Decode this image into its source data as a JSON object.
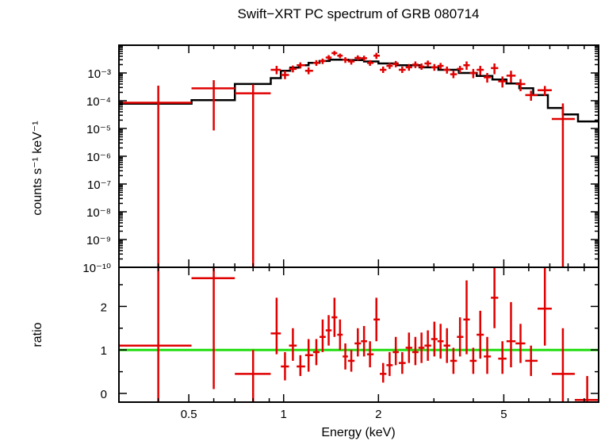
{
  "chart_data": [
    {
      "type": "scatter",
      "title": "Swift−XRT PC spectrum of GRB 080714",
      "xlabel": "",
      "ylabel": "counts s⁻¹ keV⁻¹",
      "xscale": "log",
      "yscale": "log",
      "xlim": [
        0.3,
        10
      ],
      "ylim": [
        1e-10,
        0.01
      ],
      "y_tick_labels": [
        "10⁻³",
        "10⁻⁴",
        "10⁻⁵",
        "10⁻⁶",
        "10⁻⁷",
        "10⁻⁸",
        "10⁻⁹",
        "10⁻¹⁰"
      ],
      "y_tick_values": [
        0.001,
        0.0001,
        1e-05,
        1e-06,
        1e-07,
        1e-08,
        1e-09,
        1e-10
      ],
      "series": [
        {
          "style": "crosses",
          "color": "#e00000",
          "points": [
            [
              0.3,
              0.51,
              0.4,
              8.5e-05,
              1e-10,
              0.00035
            ],
            [
              0.51,
              0.7,
              0.6,
              0.00028,
              8.5e-06,
              0.00055
            ],
            [
              0.7,
              0.91,
              0.8,
              0.000185,
              1e-10,
              0.00039
            ],
            [
              0.91,
              0.98,
              0.95,
              0.0013,
              0.0009,
              0.0018
            ],
            [
              0.98,
              1.04,
              1.01,
              0.00085,
              0.0006,
              0.0012
            ],
            [
              1.04,
              1.1,
              1.07,
              0.0014,
              0.00105,
              0.00185
            ],
            [
              1.1,
              1.17,
              1.13,
              0.0019,
              0.00145,
              0.0024
            ],
            [
              1.17,
              1.24,
              1.2,
              0.0012,
              0.0009,
              0.0016
            ],
            [
              1.24,
              1.3,
              1.27,
              0.0023,
              0.0018,
              0.0029
            ],
            [
              1.3,
              1.36,
              1.33,
              0.0027,
              0.0021,
              0.0033
            ],
            [
              1.36,
              1.42,
              1.39,
              0.0036,
              0.0029,
              0.0044
            ],
            [
              1.42,
              1.48,
              1.45,
              0.0052,
              0.0043,
              0.0062
            ],
            [
              1.48,
              1.54,
              1.51,
              0.0042,
              0.0034,
              0.005
            ],
            [
              1.54,
              1.6,
              1.57,
              0.003,
              0.0023,
              0.0037
            ],
            [
              1.6,
              1.68,
              1.64,
              0.0026,
              0.002,
              0.0032
            ],
            [
              1.68,
              1.76,
              1.72,
              0.0035,
              0.0028,
              0.0043
            ],
            [
              1.76,
              1.84,
              1.8,
              0.0034,
              0.0027,
              0.0042
            ],
            [
              1.84,
              1.93,
              1.88,
              0.0023,
              0.0018,
              0.0029
            ],
            [
              1.93,
              2.02,
              1.97,
              0.0042,
              0.0032,
              0.0053
            ],
            [
              2.02,
              2.12,
              2.07,
              0.0013,
              0.001,
              0.0017
            ],
            [
              2.12,
              2.22,
              2.17,
              0.0018,
              0.0014,
              0.0023
            ],
            [
              2.22,
              2.32,
              2.27,
              0.0021,
              0.0016,
              0.0027
            ],
            [
              2.32,
              2.44,
              2.38,
              0.0013,
              0.001,
              0.0017
            ],
            [
              2.44,
              2.56,
              2.5,
              0.0016,
              0.0012,
              0.0021
            ],
            [
              2.56,
              2.68,
              2.62,
              0.002,
              0.0015,
              0.0026
            ],
            [
              2.68,
              2.8,
              2.74,
              0.0017,
              0.0013,
              0.0022
            ],
            [
              2.8,
              2.94,
              2.87,
              0.0022,
              0.0017,
              0.0028
            ],
            [
              2.94,
              3.08,
              3.01,
              0.0016,
              0.0012,
              0.0021
            ],
            [
              3.08,
              3.22,
              3.15,
              0.0018,
              0.00135,
              0.0023
            ],
            [
              3.22,
              3.38,
              3.3,
              0.0013,
              0.00095,
              0.0017
            ],
            [
              3.38,
              3.55,
              3.46,
              0.0009,
              0.00065,
              0.0012
            ],
            [
              3.55,
              3.72,
              3.63,
              0.0014,
              0.001,
              0.0018
            ],
            [
              3.72,
              3.9,
              3.81,
              0.0019,
              0.0013,
              0.0026
            ],
            [
              3.9,
              4.1,
              4.0,
              0.001,
              0.00065,
              0.0014
            ],
            [
              4.1,
              4.32,
              4.21,
              0.0013,
              0.00085,
              0.0018
            ],
            [
              4.32,
              4.55,
              4.43,
              0.0007,
              0.00045,
              0.001
            ],
            [
              4.55,
              4.8,
              4.67,
              0.0015,
              0.0009,
              0.0022
            ],
            [
              4.8,
              5.1,
              4.95,
              0.0005,
              0.0003,
              0.00075
            ],
            [
              5.1,
              5.45,
              5.27,
              0.0008,
              0.00045,
              0.0012
            ],
            [
              5.45,
              5.85,
              5.65,
              0.0004,
              0.00022,
              0.0006
            ],
            [
              5.85,
              6.4,
              6.1,
              0.00016,
              0.0001,
              0.00023
            ],
            [
              6.4,
              7.1,
              6.75,
              0.00024,
              0.00015,
              0.00034
            ],
            [
              7.1,
              8.4,
              7.7,
              2.2e-05,
              1e-10,
              8e-05
            ]
          ]
        }
      ],
      "model": {
        "color": "#000000",
        "steps": [
          [
            0.3,
            0.51,
            7.8e-05
          ],
          [
            0.51,
            0.7,
            0.000105
          ],
          [
            0.7,
            0.91,
            0.0004
          ],
          [
            0.91,
            0.98,
            0.00065
          ],
          [
            0.98,
            1.05,
            0.0012
          ],
          [
            1.05,
            1.12,
            0.00155
          ],
          [
            1.12,
            1.2,
            0.0019
          ],
          [
            1.2,
            1.3,
            0.0023
          ],
          [
            1.3,
            1.4,
            0.0027
          ],
          [
            1.4,
            1.6,
            0.003
          ],
          [
            1.6,
            1.8,
            0.0029
          ],
          [
            1.8,
            2.0,
            0.0026
          ],
          [
            2.0,
            2.3,
            0.0022
          ],
          [
            2.3,
            2.7,
            0.0019
          ],
          [
            2.7,
            3.1,
            0.0016
          ],
          [
            3.1,
            3.6,
            0.0013
          ],
          [
            3.6,
            4.1,
            0.001
          ],
          [
            4.1,
            4.6,
            0.00078
          ],
          [
            4.6,
            5.1,
            0.00058
          ],
          [
            5.1,
            5.6,
            0.00042
          ],
          [
            5.6,
            6.2,
            0.00028
          ],
          [
            6.2,
            6.9,
            0.00016
          ],
          [
            6.9,
            7.7,
            5.5e-05
          ],
          [
            7.7,
            8.6,
            3.2e-05
          ],
          [
            8.6,
            10.0,
            1.8e-05
          ]
        ]
      }
    },
    {
      "type": "scatter",
      "title": "",
      "xlabel": "Energy (keV)",
      "ylabel": "ratio",
      "xscale": "log",
      "yscale": "linear",
      "xlim": [
        0.3,
        10
      ],
      "ylim": [
        -0.2,
        2.9
      ],
      "x_ticks": [
        {
          "value": 0.5,
          "label": "0.5"
        },
        {
          "value": 1,
          "label": "1"
        },
        {
          "value": 2,
          "label": "2"
        },
        {
          "value": 5,
          "label": "5"
        }
      ],
      "y_ticks": [
        {
          "value": 0,
          "label": "0"
        },
        {
          "value": 1,
          "label": "1"
        },
        {
          "value": 2,
          "label": "2"
        }
      ],
      "reference_line": {
        "y": 1,
        "color": "#22dd11"
      },
      "series": [
        {
          "style": "crosses",
          "color": "#e00000",
          "points": [
            [
              0.3,
              0.51,
              0.4,
              1.1,
              -0.2,
              2.9
            ],
            [
              0.51,
              0.7,
              0.6,
              2.65,
              0.1,
              2.9
            ],
            [
              0.7,
              0.91,
              0.8,
              0.45,
              -0.2,
              1.0
            ],
            [
              0.91,
              0.98,
              0.95,
              1.38,
              0.9,
              2.2
            ],
            [
              0.98,
              1.04,
              1.01,
              0.62,
              0.3,
              0.95
            ],
            [
              1.04,
              1.1,
              1.07,
              1.1,
              0.75,
              1.5
            ],
            [
              1.1,
              1.17,
              1.13,
              0.62,
              0.4,
              0.88
            ],
            [
              1.17,
              1.24,
              1.2,
              0.88,
              0.5,
              1.25
            ],
            [
              1.24,
              1.3,
              1.27,
              0.95,
              0.65,
              1.25
            ],
            [
              1.3,
              1.36,
              1.33,
              1.3,
              0.95,
              1.7
            ],
            [
              1.36,
              1.42,
              1.39,
              1.45,
              1.1,
              1.8
            ],
            [
              1.42,
              1.48,
              1.45,
              1.75,
              1.3,
              2.2
            ],
            [
              1.48,
              1.54,
              1.51,
              1.35,
              1.0,
              1.7
            ],
            [
              1.54,
              1.6,
              1.57,
              0.85,
              0.55,
              1.15
            ],
            [
              1.6,
              1.68,
              1.64,
              0.75,
              0.5,
              1.0
            ],
            [
              1.68,
              1.76,
              1.72,
              1.15,
              0.85,
              1.5
            ],
            [
              1.76,
              1.84,
              1.8,
              1.2,
              0.85,
              1.55
            ],
            [
              1.84,
              1.93,
              1.88,
              0.9,
              0.6,
              1.2
            ],
            [
              1.93,
              2.02,
              1.97,
              1.7,
              1.2,
              2.2
            ],
            [
              2.02,
              2.12,
              2.07,
              0.45,
              0.25,
              0.7
            ],
            [
              2.12,
              2.22,
              2.17,
              0.65,
              0.4,
              0.95
            ],
            [
              2.22,
              2.32,
              2.27,
              0.95,
              0.65,
              1.3
            ],
            [
              2.32,
              2.44,
              2.38,
              0.7,
              0.45,
              0.95
            ],
            [
              2.44,
              2.56,
              2.5,
              1.05,
              0.7,
              1.4
            ],
            [
              2.56,
              2.68,
              2.62,
              0.95,
              0.65,
              1.3
            ],
            [
              2.68,
              2.8,
              2.74,
              1.05,
              0.7,
              1.4
            ],
            [
              2.8,
              2.94,
              2.87,
              1.1,
              0.75,
              1.45
            ],
            [
              2.94,
              3.08,
              3.01,
              1.25,
              0.85,
              1.65
            ],
            [
              3.08,
              3.22,
              3.15,
              1.2,
              0.8,
              1.6
            ],
            [
              3.22,
              3.38,
              3.3,
              1.1,
              0.7,
              1.5
            ],
            [
              3.38,
              3.55,
              3.46,
              0.75,
              0.45,
              1.05
            ],
            [
              3.55,
              3.72,
              3.63,
              1.3,
              0.85,
              1.75
            ],
            [
              3.72,
              3.9,
              3.81,
              1.7,
              0.9,
              2.6
            ],
            [
              3.9,
              4.1,
              4.0,
              0.75,
              0.45,
              1.05
            ],
            [
              4.1,
              4.32,
              4.21,
              1.35,
              0.8,
              1.9
            ],
            [
              4.32,
              4.55,
              4.43,
              0.85,
              0.45,
              1.3
            ],
            [
              4.55,
              4.8,
              4.67,
              2.2,
              1.5,
              2.9
            ],
            [
              4.8,
              5.1,
              4.95,
              0.8,
              0.45,
              1.2
            ],
            [
              5.1,
              5.45,
              5.27,
              1.2,
              0.6,
              2.1
            ],
            [
              5.45,
              5.85,
              5.65,
              1.15,
              0.7,
              1.6
            ],
            [
              5.85,
              6.4,
              6.1,
              0.75,
              0.4,
              1.1
            ],
            [
              6.4,
              7.1,
              6.75,
              1.95,
              1.1,
              2.9
            ],
            [
              7.1,
              8.4,
              7.7,
              0.45,
              -0.2,
              1.5
            ],
            [
              8.4,
              10.0,
              9.2,
              -0.15,
              -0.2,
              0.4
            ]
          ]
        }
      ]
    }
  ]
}
